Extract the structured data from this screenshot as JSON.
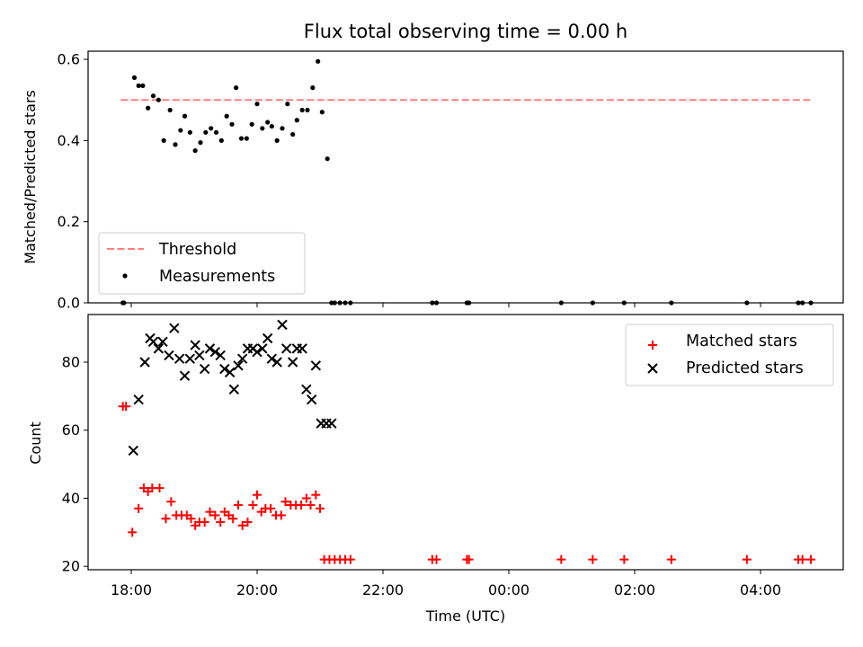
{
  "title": "Flux total observing time = 0.00 h",
  "colors": {
    "threshold": "#ff7f7f",
    "measurements": "#000000",
    "matched": "#ff0000",
    "predicted": "#000000"
  },
  "chart_data": [
    {
      "type": "scatter",
      "ylabel": "Matched/Predicted stars",
      "xlabel": "",
      "ylim": [
        0,
        0.62
      ],
      "y_ticks": [
        "0.0",
        "0.2",
        "0.4",
        "0.6"
      ],
      "x_ticks": [
        "18:00",
        "20:00",
        "22:00",
        "00:00",
        "02:00",
        "04:00"
      ],
      "legend": {
        "placement": "lower-left",
        "entries": [
          "Threshold",
          "Measurements"
        ]
      },
      "threshold": {
        "name": "Threshold",
        "y": 0.5,
        "x_start": "17:50",
        "x_end": "04:50"
      },
      "series": [
        {
          "name": "Measurements",
          "x": [
            "17:52",
            "17:53",
            "18:03",
            "18:07",
            "18:11",
            "18:16",
            "18:21",
            "18:26",
            "18:31",
            "18:37",
            "18:42",
            "18:47",
            "18:51",
            "18:56",
            "19:01",
            "19:06",
            "19:11",
            "19:16",
            "19:21",
            "19:26",
            "19:31",
            "19:36",
            "19:40",
            "19:45",
            "19:50",
            "19:55",
            "20:00",
            "20:05",
            "20:10",
            "20:14",
            "20:19",
            "20:24",
            "20:29",
            "20:34",
            "20:38",
            "20:43",
            "20:48",
            "20:53",
            "20:58",
            "21:02",
            "21:07",
            "21:11",
            "21:14",
            "21:19",
            "21:24",
            "21:29",
            "22:47",
            "22:51",
            "23:20",
            "23:22",
            "00:50",
            "01:20",
            "01:50",
            "02:35",
            "03:47",
            "04:36",
            "04:40",
            "04:48"
          ],
          "y": [
            0.0,
            0.0,
            0.555,
            0.535,
            0.535,
            0.48,
            0.51,
            0.5,
            0.4,
            0.475,
            0.39,
            0.425,
            0.46,
            0.42,
            0.375,
            0.395,
            0.42,
            0.43,
            0.42,
            0.4,
            0.46,
            0.44,
            0.53,
            0.405,
            0.405,
            0.44,
            0.49,
            0.43,
            0.445,
            0.435,
            0.4,
            0.43,
            0.49,
            0.415,
            0.45,
            0.475,
            0.475,
            0.53,
            0.595,
            0.47,
            0.355,
            0.0,
            0.0,
            0.0,
            0.0,
            0.0,
            0.0,
            0.0,
            0.0,
            0.0,
            0.0,
            0.0,
            0.0,
            0.0,
            0.0,
            0.0,
            0.0,
            0.0
          ]
        }
      ]
    },
    {
      "type": "scatter",
      "ylabel": "Count",
      "xlabel": "Time (UTC)",
      "ylim": [
        19,
        94
      ],
      "y_ticks": [
        "20",
        "40",
        "60",
        "80"
      ],
      "x_ticks": [
        "18:00",
        "20:00",
        "22:00",
        "00:00",
        "02:00",
        "04:00"
      ],
      "legend": {
        "placement": "upper-right",
        "entries": [
          "Matched stars",
          "Predicted stars"
        ]
      },
      "series": [
        {
          "name": "Matched stars",
          "x": [
            "17:52",
            "17:55",
            "18:01",
            "18:07",
            "18:12",
            "18:16",
            "18:20",
            "18:27",
            "18:33",
            "18:38",
            "18:43",
            "18:48",
            "18:53",
            "18:57",
            "19:01",
            "19:05",
            "19:10",
            "19:15",
            "19:20",
            "19:25",
            "19:29",
            "19:33",
            "19:37",
            "19:42",
            "19:46",
            "19:51",
            "19:56",
            "20:00",
            "20:04",
            "20:08",
            "20:13",
            "20:18",
            "20:23",
            "20:27",
            "20:32",
            "20:37",
            "20:42",
            "20:47",
            "20:51",
            "20:56",
            "21:00",
            "21:04",
            "21:09",
            "21:14",
            "21:19",
            "21:24",
            "21:29",
            "22:47",
            "22:51",
            "23:20",
            "23:22",
            "00:50",
            "01:20",
            "01:50",
            "02:35",
            "03:47",
            "04:36",
            "04:40",
            "04:48"
          ],
          "y": [
            67,
            67,
            30,
            37,
            43,
            42,
            43,
            43,
            34,
            39,
            35,
            35,
            35,
            34,
            32,
            33,
            33,
            36,
            35,
            33,
            36,
            35,
            34,
            38,
            32,
            33,
            38,
            41,
            36,
            37,
            37,
            35,
            35,
            39,
            38,
            38,
            38,
            40,
            38,
            41,
            37,
            22,
            22,
            22,
            22,
            22,
            22,
            22,
            22,
            22,
            22,
            22,
            22,
            22,
            22,
            22,
            22,
            22,
            22
          ]
        },
        {
          "name": "Predicted stars",
          "x": [
            "18:02",
            "18:07",
            "18:13",
            "18:18",
            "18:21",
            "18:26",
            "18:30",
            "18:36",
            "18:41",
            "18:46",
            "18:51",
            "18:56",
            "19:01",
            "19:05",
            "19:10",
            "19:15",
            "19:20",
            "19:25",
            "19:29",
            "19:34",
            "19:38",
            "19:42",
            "19:46",
            "19:51",
            "19:56",
            "20:00",
            "20:05",
            "20:10",
            "20:14",
            "20:19",
            "20:24",
            "20:28",
            "20:34",
            "20:38",
            "20:43",
            "20:47",
            "20:52",
            "20:56",
            "21:01",
            "21:06",
            "21:11"
          ],
          "y": [
            54,
            69,
            80,
            87,
            86,
            84,
            86,
            82,
            90,
            81,
            76,
            81,
            85,
            82,
            78,
            84,
            83,
            82,
            78,
            77,
            72,
            79,
            81,
            84,
            84,
            83,
            84,
            87,
            81,
            80,
            91,
            84,
            80,
            84,
            84,
            72,
            69,
            79,
            62,
            62,
            62
          ]
        }
      ]
    }
  ]
}
